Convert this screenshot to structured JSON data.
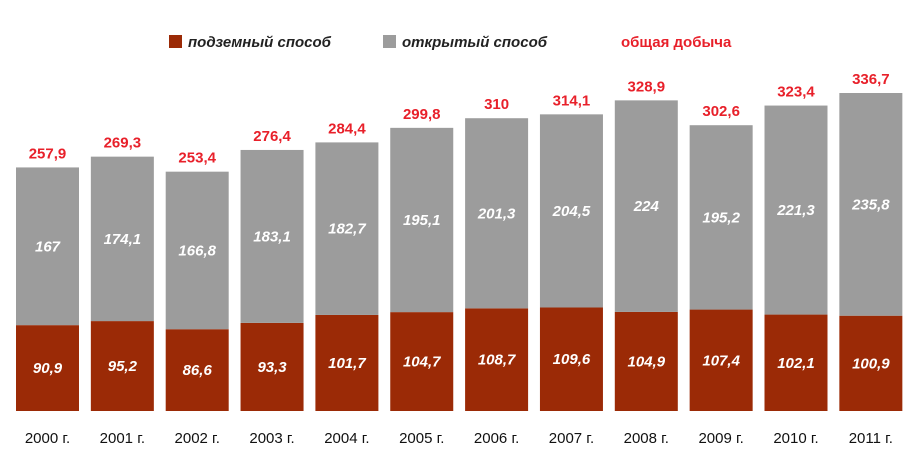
{
  "chart_data": {
    "type": "bar",
    "stacked": true,
    "title": "",
    "xlabel": "",
    "ylabel": "",
    "ylim": [
      0,
      340
    ],
    "grid": false,
    "legend_position": "top",
    "categories": [
      "2000 г.",
      "2001 г.",
      "2002 г.",
      "2003 г.",
      "2004 г.",
      "2005 г.",
      "2006 г.",
      "2007 г.",
      "2008 г.",
      "2009 г.",
      "2010 г.",
      "2011 г."
    ],
    "series": [
      {
        "name": "подземный способ",
        "color": "#9b2a06",
        "values": [
          90.9,
          95.2,
          86.6,
          93.3,
          101.7,
          104.7,
          108.7,
          109.6,
          104.9,
          107.4,
          102.1,
          100.9
        ],
        "labels": [
          "90,9",
          "95,2",
          "86,6",
          "93,3",
          "101,7",
          "104,7",
          "108,7",
          "109,6",
          "104,9",
          "107,4",
          "102,1",
          "100,9"
        ]
      },
      {
        "name": "открытый способ",
        "color": "#9c9c9c",
        "values": [
          167,
          174.1,
          166.8,
          183.1,
          182.7,
          195.1,
          201.3,
          204.5,
          224,
          195.2,
          221.3,
          235.8
        ],
        "labels": [
          "167",
          "174,1",
          "166,8",
          "183,1",
          "182,7",
          "195,1",
          "201,3",
          "204,5",
          "224",
          "195,2",
          "221,3",
          "235,8"
        ]
      }
    ],
    "totals": {
      "name": "общая добыча",
      "color": "#e8202a",
      "values": [
        257.9,
        269.3,
        253.4,
        276.4,
        284.4,
        299.8,
        310,
        314.1,
        328.9,
        302.6,
        323.4,
        336.7
      ],
      "labels": [
        "257,9",
        "269,3",
        "253,4",
        "276,4",
        "284,4",
        "299,8",
        "310",
        "314,1",
        "328,9",
        "302,6",
        "323,4",
        "336,7"
      ]
    }
  }
}
